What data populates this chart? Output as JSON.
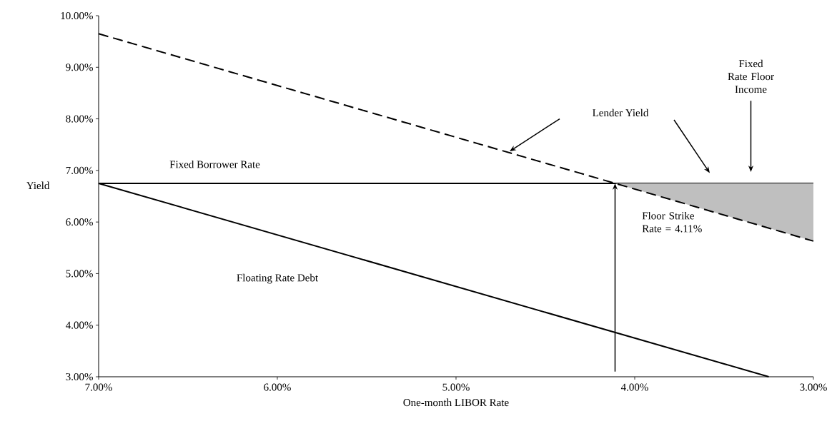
{
  "chart_data": {
    "type": "line",
    "xlabel": "One-month LIBOR Rate",
    "ylabel": "Yield",
    "xlim": [
      7,
      3
    ],
    "ylim": [
      3,
      10
    ],
    "xticks": [
      {
        "value": 7,
        "label": "7.00%"
      },
      {
        "value": 6,
        "label": "6.00%"
      },
      {
        "value": 5,
        "label": "5.00%"
      },
      {
        "value": 4,
        "label": "4.00%"
      },
      {
        "value": 3,
        "label": "3.00%"
      }
    ],
    "yticks": [
      {
        "value": 3,
        "label": "3.00%"
      },
      {
        "value": 4,
        "label": "4.00%"
      },
      {
        "value": 5,
        "label": "5.00%"
      },
      {
        "value": 6,
        "label": "6.00%"
      },
      {
        "value": 7,
        "label": "7.00%"
      },
      {
        "value": 8,
        "label": "8.00%"
      },
      {
        "value": 9,
        "label": "9.00%"
      },
      {
        "value": 10,
        "label": "10.00%"
      }
    ],
    "series": [
      {
        "name": "Fixed Borrower Rate",
        "color": "#000000",
        "line_style": "solid",
        "x": [
          7,
          3
        ],
        "values": [
          6.75,
          6.75
        ]
      },
      {
        "name": "Floating Rate Debt",
        "color": "#000000",
        "line_style": "solid",
        "x": [
          7,
          3.25
        ],
        "values": [
          6.75,
          3.0
        ]
      },
      {
        "color": "#000000",
        "line_style": "dashed",
        "x": [
          7,
          4.11,
          3
        ],
        "values": [
          9.65,
          6.75,
          5.63
        ],
        "lower": [
          null,
          6.75,
          5.63
        ],
        "upper": [
          null,
          6.75,
          6.75
        ]
      }
    ],
    "annotations": [
      "Lender Yield",
      "Floor Strike Rate = 4.11%",
      "Fixed Rate Floor Income"
    ]
  }
}
